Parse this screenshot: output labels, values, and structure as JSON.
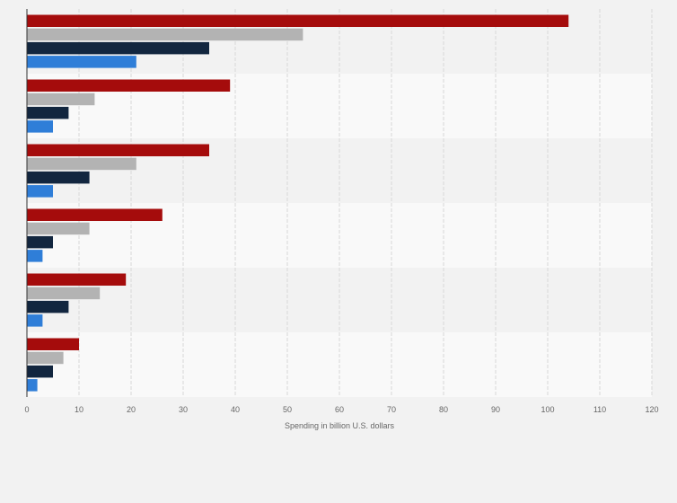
{
  "chart_data": {
    "type": "bar",
    "orientation": "horizontal",
    "title": "",
    "xlabel": "Spending in billion U.S. dollars",
    "ylabel": "",
    "xlim": [
      0,
      120
    ],
    "x_ticks": [
      0,
      10,
      20,
      30,
      40,
      50,
      60,
      70,
      80,
      90,
      100,
      110,
      120
    ],
    "grid": true,
    "legend": "none",
    "categories": [
      "",
      "",
      "",
      "",
      "",
      ""
    ],
    "series": [
      {
        "color": "#a50c0c",
        "values": [
          104,
          39,
          35,
          26,
          19,
          10
        ]
      },
      {
        "color": "#b3b3b3",
        "values": [
          53,
          13,
          21,
          12,
          14,
          7
        ]
      },
      {
        "color": "#12263f",
        "values": [
          35,
          8,
          12,
          5,
          8,
          5
        ]
      },
      {
        "color": "#2f7ed8",
        "values": [
          21,
          5,
          5,
          3,
          3,
          2
        ]
      }
    ]
  }
}
